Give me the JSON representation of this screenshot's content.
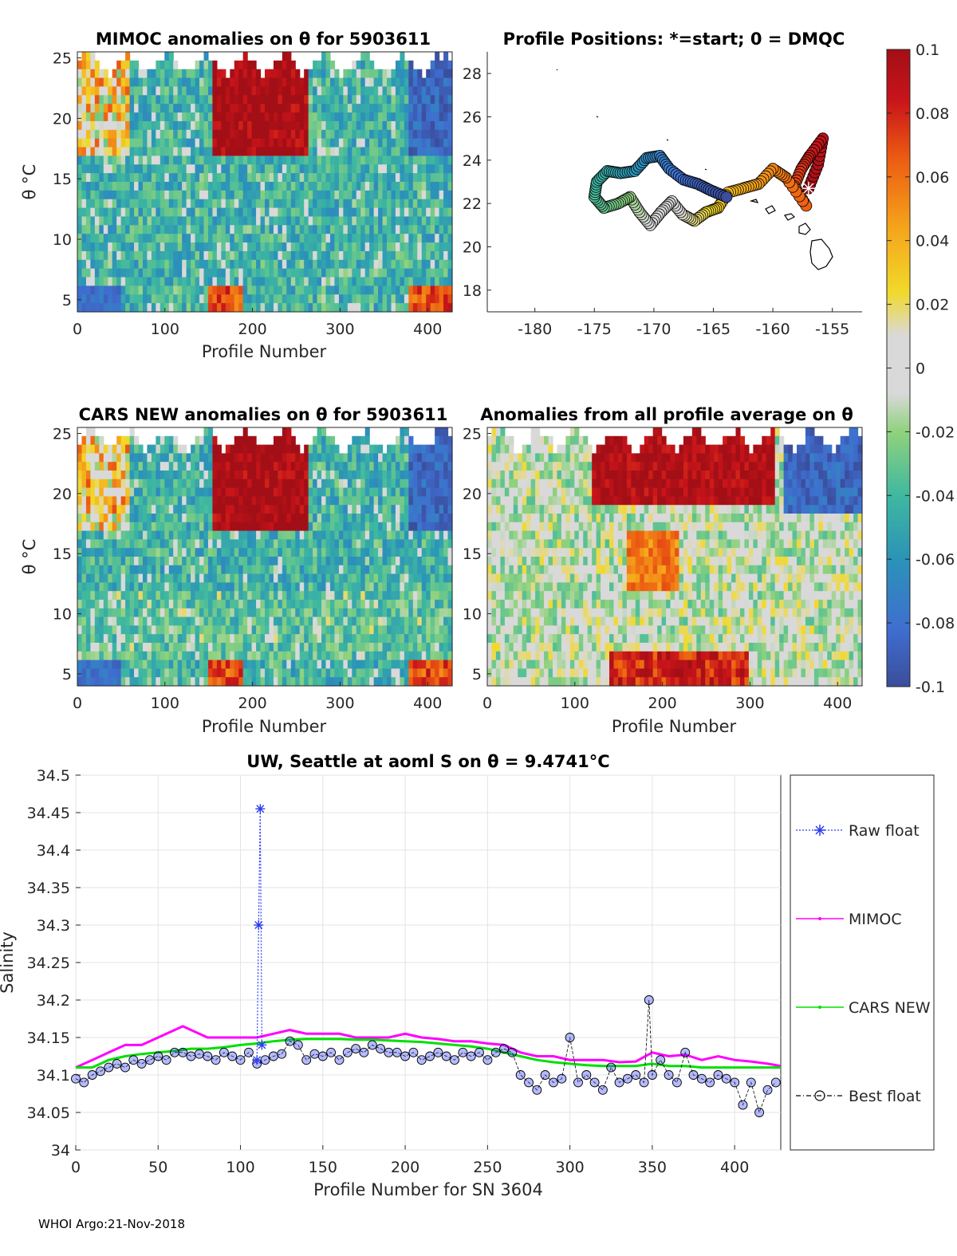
{
  "float_id": "5903611",
  "footer": "WHOI Argo:21-Nov-2018",
  "colorbar": {
    "min": -0.1,
    "max": 0.1,
    "tick_values": [
      0.1,
      0.08,
      0.06,
      0.04,
      0.02,
      0,
      -0.02,
      -0.04,
      -0.06,
      -0.08,
      -0.1
    ],
    "tick_labels": [
      "0.1",
      "0.08",
      "0.06",
      "0.04",
      "0.02",
      "0",
      "-0.02",
      "-0.04",
      "-0.06",
      "-0.08",
      "-0.1"
    ],
    "colors": [
      "#3b4d9b",
      "#3f6ed0",
      "#2b93b8",
      "#3fb8a0",
      "#8fd27c",
      "#d9d9d9",
      "#d9d9d9",
      "#f1d92a",
      "#f5a41b",
      "#ec5b12",
      "#c8141a",
      "#a30f16"
    ]
  },
  "chart_data": [
    {
      "id": "mimoc",
      "type": "heatmap",
      "title": "MIMOC anomalies on θ  for 5903611",
      "xlabel": "Profile Number",
      "ylabel": "θ °C",
      "xlim": [
        0,
        428
      ],
      "ylim": [
        4,
        25.5
      ],
      "xticks": [
        0,
        100,
        200,
        300,
        400
      ],
      "yticks": [
        5,
        10,
        15,
        20,
        25
      ]
    },
    {
      "id": "positions",
      "type": "scatter",
      "title": "Profile Positions: *=start; 0 = DMQC",
      "xlabel": "",
      "ylabel": "",
      "xlim": [
        -184,
        -152.5
      ],
      "ylim": [
        17,
        29
      ],
      "xticks": [
        -180,
        -175,
        -170,
        -165,
        -160,
        -155
      ],
      "yticks": [
        18,
        20,
        22,
        24,
        26,
        28
      ],
      "start": {
        "lon": -157,
        "lat": 22.7
      },
      "track": [
        {
          "lon": -157,
          "lat": 22.7
        },
        {
          "lon": -156.2,
          "lat": 23.8
        },
        {
          "lon": -155.8,
          "lat": 25.0
        },
        {
          "lon": -156.9,
          "lat": 24.2
        },
        {
          "lon": -157.6,
          "lat": 23.6
        },
        {
          "lon": -158.2,
          "lat": 22.8
        },
        {
          "lon": -157.2,
          "lat": 21.9
        },
        {
          "lon": -158.9,
          "lat": 23.2
        },
        {
          "lon": -160.0,
          "lat": 23.6
        },
        {
          "lon": -161.2,
          "lat": 22.9
        },
        {
          "lon": -162.5,
          "lat": 22.7
        },
        {
          "lon": -163.8,
          "lat": 22.5
        },
        {
          "lon": -164.6,
          "lat": 21.8
        },
        {
          "lon": -165.6,
          "lat": 21.6
        },
        {
          "lon": -166.6,
          "lat": 21.2
        },
        {
          "lon": -167.6,
          "lat": 21.5
        },
        {
          "lon": -168.5,
          "lat": 22.1
        },
        {
          "lon": -169.4,
          "lat": 21.6
        },
        {
          "lon": -170.3,
          "lat": 21.0
        },
        {
          "lon": -171.2,
          "lat": 21.6
        },
        {
          "lon": -172.0,
          "lat": 22.3
        },
        {
          "lon": -173.0,
          "lat": 22.0
        },
        {
          "lon": -174.2,
          "lat": 21.8
        },
        {
          "lon": -175.0,
          "lat": 22.3
        },
        {
          "lon": -174.8,
          "lat": 23.0
        },
        {
          "lon": -173.9,
          "lat": 23.5
        },
        {
          "lon": -172.8,
          "lat": 23.4
        },
        {
          "lon": -171.6,
          "lat": 23.5
        },
        {
          "lon": -170.6,
          "lat": 24.1
        },
        {
          "lon": -169.5,
          "lat": 24.2
        },
        {
          "lon": -168.7,
          "lat": 23.6
        },
        {
          "lon": -167.5,
          "lat": 23.1
        },
        {
          "lon": -166.3,
          "lat": 22.9
        },
        {
          "lon": -165.2,
          "lat": 22.6
        },
        {
          "lon": -163.9,
          "lat": 22.3
        }
      ]
    },
    {
      "id": "cars",
      "type": "heatmap",
      "title": "CARS NEW anomalies on θ for 5903611",
      "xlabel": "Profile Number",
      "ylabel": "θ °C",
      "xlim": [
        0,
        428
      ],
      "ylim": [
        4,
        25.5
      ],
      "xticks": [
        0,
        100,
        200,
        300,
        400
      ],
      "yticks": [
        5,
        10,
        15,
        20,
        25
      ]
    },
    {
      "id": "avg",
      "type": "heatmap",
      "title": "Anomalies from all profile average on θ",
      "xlabel": "Profile Number",
      "ylabel": "",
      "xlim": [
        0,
        428
      ],
      "ylim": [
        4,
        25.5
      ],
      "xticks": [
        0,
        100,
        200,
        300,
        400
      ],
      "yticks": [
        5,
        10,
        15,
        20,
        25
      ]
    },
    {
      "id": "salinity",
      "type": "line",
      "title": "UW, Seattle at aoml S on θ = 9.4741°C",
      "xlabel": "Profile Number for SN 3604",
      "ylabel": "Salinity",
      "xlim": [
        0,
        428
      ],
      "ylim": [
        34,
        34.5
      ],
      "xticks": [
        0,
        50,
        100,
        150,
        200,
        250,
        300,
        350,
        400
      ],
      "yticks": [
        34,
        34.05,
        34.1,
        34.15,
        34.2,
        34.25,
        34.3,
        34.35,
        34.4,
        34.45,
        34.5
      ],
      "ytick_labels": [
        "34",
        "34.05",
        "34.1",
        "34.15",
        "34.2",
        "34.25",
        "34.3",
        "34.35",
        "34.4",
        "34.45",
        "34.5"
      ],
      "legend": [
        "Raw float",
        "MIMOC",
        "CARS NEW",
        "Best float"
      ],
      "series": [
        {
          "name": "MIMOC",
          "x": [
            0,
            10,
            20,
            30,
            40,
            50,
            60,
            65,
            70,
            80,
            90,
            100,
            110,
            120,
            130,
            140,
            150,
            160,
            170,
            180,
            190,
            200,
            210,
            220,
            230,
            240,
            250,
            260,
            270,
            280,
            290,
            300,
            310,
            320,
            330,
            340,
            350,
            360,
            370,
            380,
            390,
            400,
            410,
            420,
            428
          ],
          "values": [
            34.11,
            34.12,
            34.13,
            34.14,
            34.14,
            34.15,
            34.16,
            34.165,
            34.16,
            34.15,
            34.15,
            34.15,
            34.15,
            34.155,
            34.16,
            34.155,
            34.155,
            34.155,
            34.15,
            34.15,
            34.15,
            34.155,
            34.15,
            34.148,
            34.145,
            34.145,
            34.142,
            34.14,
            34.13,
            34.125,
            34.125,
            34.12,
            34.12,
            34.12,
            34.117,
            34.118,
            34.13,
            34.125,
            34.127,
            34.12,
            34.125,
            34.12,
            34.118,
            34.115,
            34.112
          ]
        },
        {
          "name": "CARS NEW",
          "x": [
            0,
            10,
            20,
            30,
            40,
            50,
            60,
            70,
            80,
            90,
            100,
            110,
            120,
            130,
            140,
            150,
            160,
            170,
            180,
            190,
            200,
            210,
            220,
            230,
            240,
            250,
            260,
            270,
            280,
            290,
            300,
            310,
            320,
            330,
            340,
            350,
            360,
            370,
            380,
            390,
            400,
            410,
            420,
            428
          ],
          "values": [
            34.11,
            34.11,
            34.12,
            34.125,
            34.128,
            34.13,
            34.132,
            34.135,
            34.135,
            34.137,
            34.14,
            34.142,
            34.145,
            34.147,
            34.148,
            34.148,
            34.148,
            34.147,
            34.147,
            34.146,
            34.145,
            34.144,
            34.142,
            34.14,
            34.138,
            34.135,
            34.13,
            34.125,
            34.12,
            34.117,
            34.115,
            34.113,
            34.112,
            34.112,
            34.112,
            34.115,
            34.112,
            34.112,
            34.11,
            34.11,
            34.11,
            34.11,
            34.11,
            34.11
          ]
        },
        {
          "name": "Best float",
          "x": [
            0,
            5,
            10,
            15,
            20,
            25,
            30,
            35,
            40,
            45,
            50,
            55,
            60,
            65,
            70,
            75,
            80,
            85,
            90,
            95,
            100,
            105,
            110,
            115,
            120,
            125,
            130,
            135,
            140,
            145,
            150,
            155,
            160,
            165,
            170,
            175,
            180,
            185,
            190,
            195,
            200,
            205,
            210,
            215,
            220,
            225,
            230,
            235,
            240,
            245,
            250,
            255,
            260,
            265,
            270,
            275,
            280,
            285,
            290,
            295,
            300,
            305,
            310,
            315,
            320,
            325,
            330,
            335,
            340,
            345,
            348,
            350,
            355,
            360,
            365,
            370,
            375,
            380,
            385,
            390,
            395,
            400,
            405,
            410,
            415,
            420,
            425
          ],
          "values": [
            34.095,
            34.09,
            34.1,
            34.105,
            34.11,
            34.115,
            34.11,
            34.12,
            34.115,
            34.12,
            34.125,
            34.12,
            34.13,
            34.13,
            34.125,
            34.128,
            34.125,
            34.12,
            34.13,
            34.125,
            34.12,
            34.13,
            34.115,
            34.12,
            34.125,
            34.128,
            34.145,
            34.14,
            34.12,
            34.128,
            34.125,
            34.13,
            34.12,
            34.13,
            34.135,
            34.13,
            34.14,
            34.135,
            34.13,
            34.13,
            34.125,
            34.13,
            34.12,
            34.125,
            34.13,
            34.125,
            34.12,
            34.13,
            34.125,
            34.13,
            34.12,
            34.13,
            34.135,
            34.13,
            34.1,
            34.09,
            34.08,
            34.1,
            34.09,
            34.095,
            34.15,
            34.09,
            34.1,
            34.09,
            34.08,
            34.11,
            34.09,
            34.095,
            34.1,
            34.09,
            34.2,
            34.1,
            34.12,
            34.1,
            34.09,
            34.13,
            34.1,
            34.095,
            34.09,
            34.1,
            34.095,
            34.09,
            34.06,
            34.09,
            34.05,
            34.08,
            34.09
          ]
        },
        {
          "name": "Raw float",
          "x": [
            110,
            111,
            112,
            113
          ],
          "values": [
            34.12,
            34.3,
            34.455,
            34.14
          ]
        }
      ]
    }
  ]
}
